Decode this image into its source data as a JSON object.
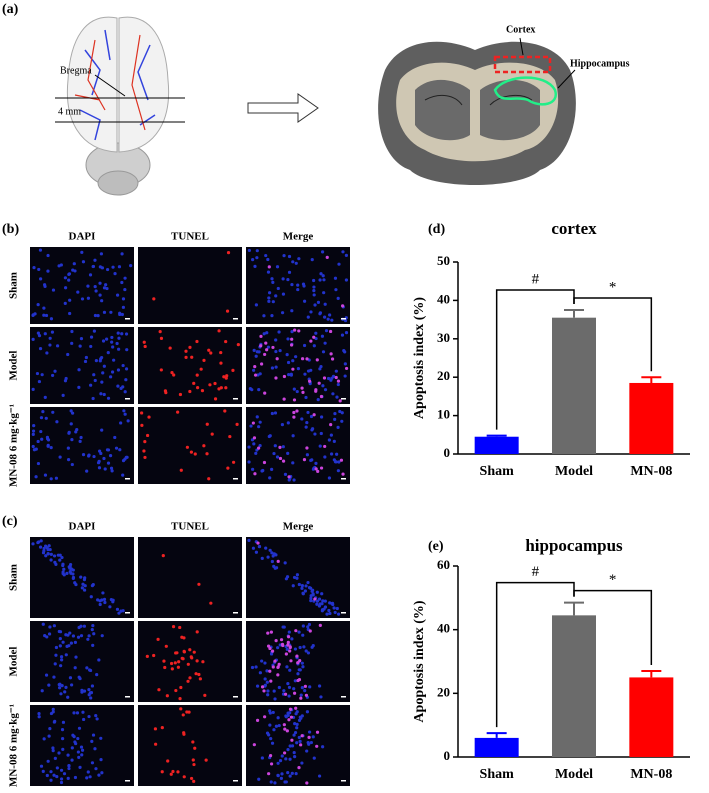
{
  "panel_labels": [
    "(a)",
    "(b)",
    "(c)",
    "(d)",
    "(e)"
  ],
  "panel_a": {
    "bregma": "Bregma",
    "distance": "4 mm",
    "cortex": "Cortex",
    "hippocampus": "Hippocampus"
  },
  "staining": {
    "columns": [
      "DAPI",
      "TUNEL",
      "Merge"
    ],
    "rows": [
      "Sham",
      "Model",
      "MN-08 6 mg·kg⁻¹"
    ]
  },
  "chart_data": [
    {
      "type": "bar",
      "title": "cortex",
      "y_label": "Apoptosis index (%)",
      "categories": [
        "Sham",
        "Model",
        "MN-08"
      ],
      "values": [
        4.5,
        35.5,
        18.5
      ],
      "errors": [
        0.3,
        2.0,
        1.5
      ],
      "colors": [
        "#0000ff",
        "#6b6b6b",
        "#ff0000"
      ],
      "ylim": [
        0,
        50
      ],
      "yticks": [
        0,
        10,
        20,
        30,
        40,
        50
      ],
      "annotations": [
        "#",
        "*"
      ]
    },
    {
      "type": "bar",
      "title": "hippocampus",
      "y_label": "Apoptosis index (%)",
      "categories": [
        "Sham",
        "Model",
        "MN-08"
      ],
      "values": [
        6,
        44.5,
        25
      ],
      "errors": [
        1.5,
        4,
        2
      ],
      "colors": [
        "#0000ff",
        "#6b6b6b",
        "#ff0000"
      ],
      "ylim": [
        0,
        60
      ],
      "yticks": [
        0,
        20,
        40,
        60
      ],
      "annotations": [
        "#",
        "*"
      ]
    }
  ]
}
